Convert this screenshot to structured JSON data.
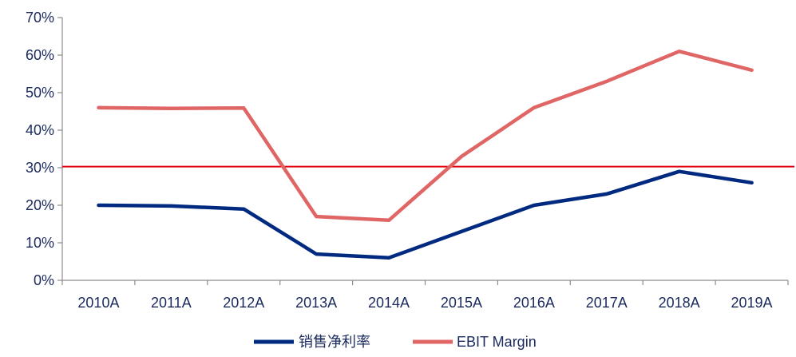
{
  "chart_data": {
    "type": "line",
    "title": "",
    "xlabel": "",
    "ylabel": "",
    "categories": [
      "2010A",
      "2011A",
      "2012A",
      "2013A",
      "2014A",
      "2015A",
      "2016A",
      "2017A",
      "2018A",
      "2019A"
    ],
    "series": [
      {
        "name": "销售净利率",
        "color": "#002a80",
        "values": [
          20,
          19.8,
          19,
          7,
          6,
          13,
          20,
          23,
          29,
          26
        ]
      },
      {
        "name": "EBIT Margin",
        "color": "#e06666",
        "values": [
          46,
          45.8,
          45.9,
          17,
          16,
          33,
          46,
          53,
          61,
          56
        ]
      }
    ],
    "reference_line": {
      "value": 30.3,
      "color": "#e3000f"
    },
    "ylim": [
      0,
      70
    ],
    "y_ticks": [
      "0%",
      "10%",
      "20%",
      "30%",
      "40%",
      "50%",
      "60%",
      "70%"
    ],
    "y_tick_values": [
      0,
      10,
      20,
      30,
      40,
      50,
      60,
      70
    ],
    "grid": false,
    "legend_position": "bottom-center"
  }
}
